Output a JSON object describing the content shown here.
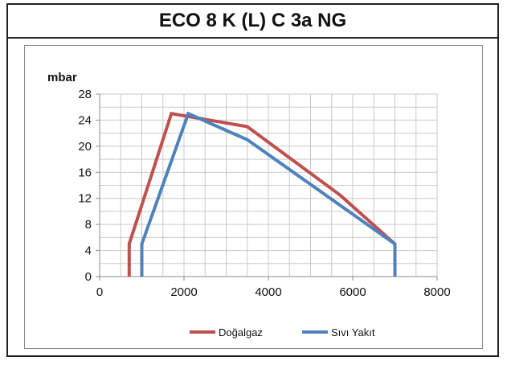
{
  "title": "ECO 8 K (L) C 3a NG",
  "chart_data": {
    "type": "line",
    "title": "ECO 8 K (L) C 3a NG",
    "xlabel": "",
    "ylabel": "mbar",
    "xlim": [
      0,
      8000
    ],
    "ylim": [
      0,
      28
    ],
    "x_ticks": [
      0,
      2000,
      4000,
      6000,
      8000
    ],
    "y_ticks": [
      0,
      4,
      8,
      12,
      16,
      20,
      24,
      28
    ],
    "grid": true,
    "legend_position": "bottom",
    "series": [
      {
        "name": "Doğalgaz",
        "color": "#c0504d",
        "points": [
          [
            700,
            0
          ],
          [
            700,
            5
          ],
          [
            1700,
            25
          ],
          [
            3500,
            23
          ],
          [
            5700,
            12.5
          ],
          [
            7000,
            5
          ],
          [
            7000,
            0
          ]
        ]
      },
      {
        "name": "Sıvı Yakıt",
        "color": "#4f81bd",
        "points": [
          [
            1000,
            0
          ],
          [
            1000,
            5
          ],
          [
            2100,
            25
          ],
          [
            3500,
            21
          ],
          [
            7000,
            5
          ],
          [
            7000,
            0
          ]
        ]
      }
    ]
  }
}
